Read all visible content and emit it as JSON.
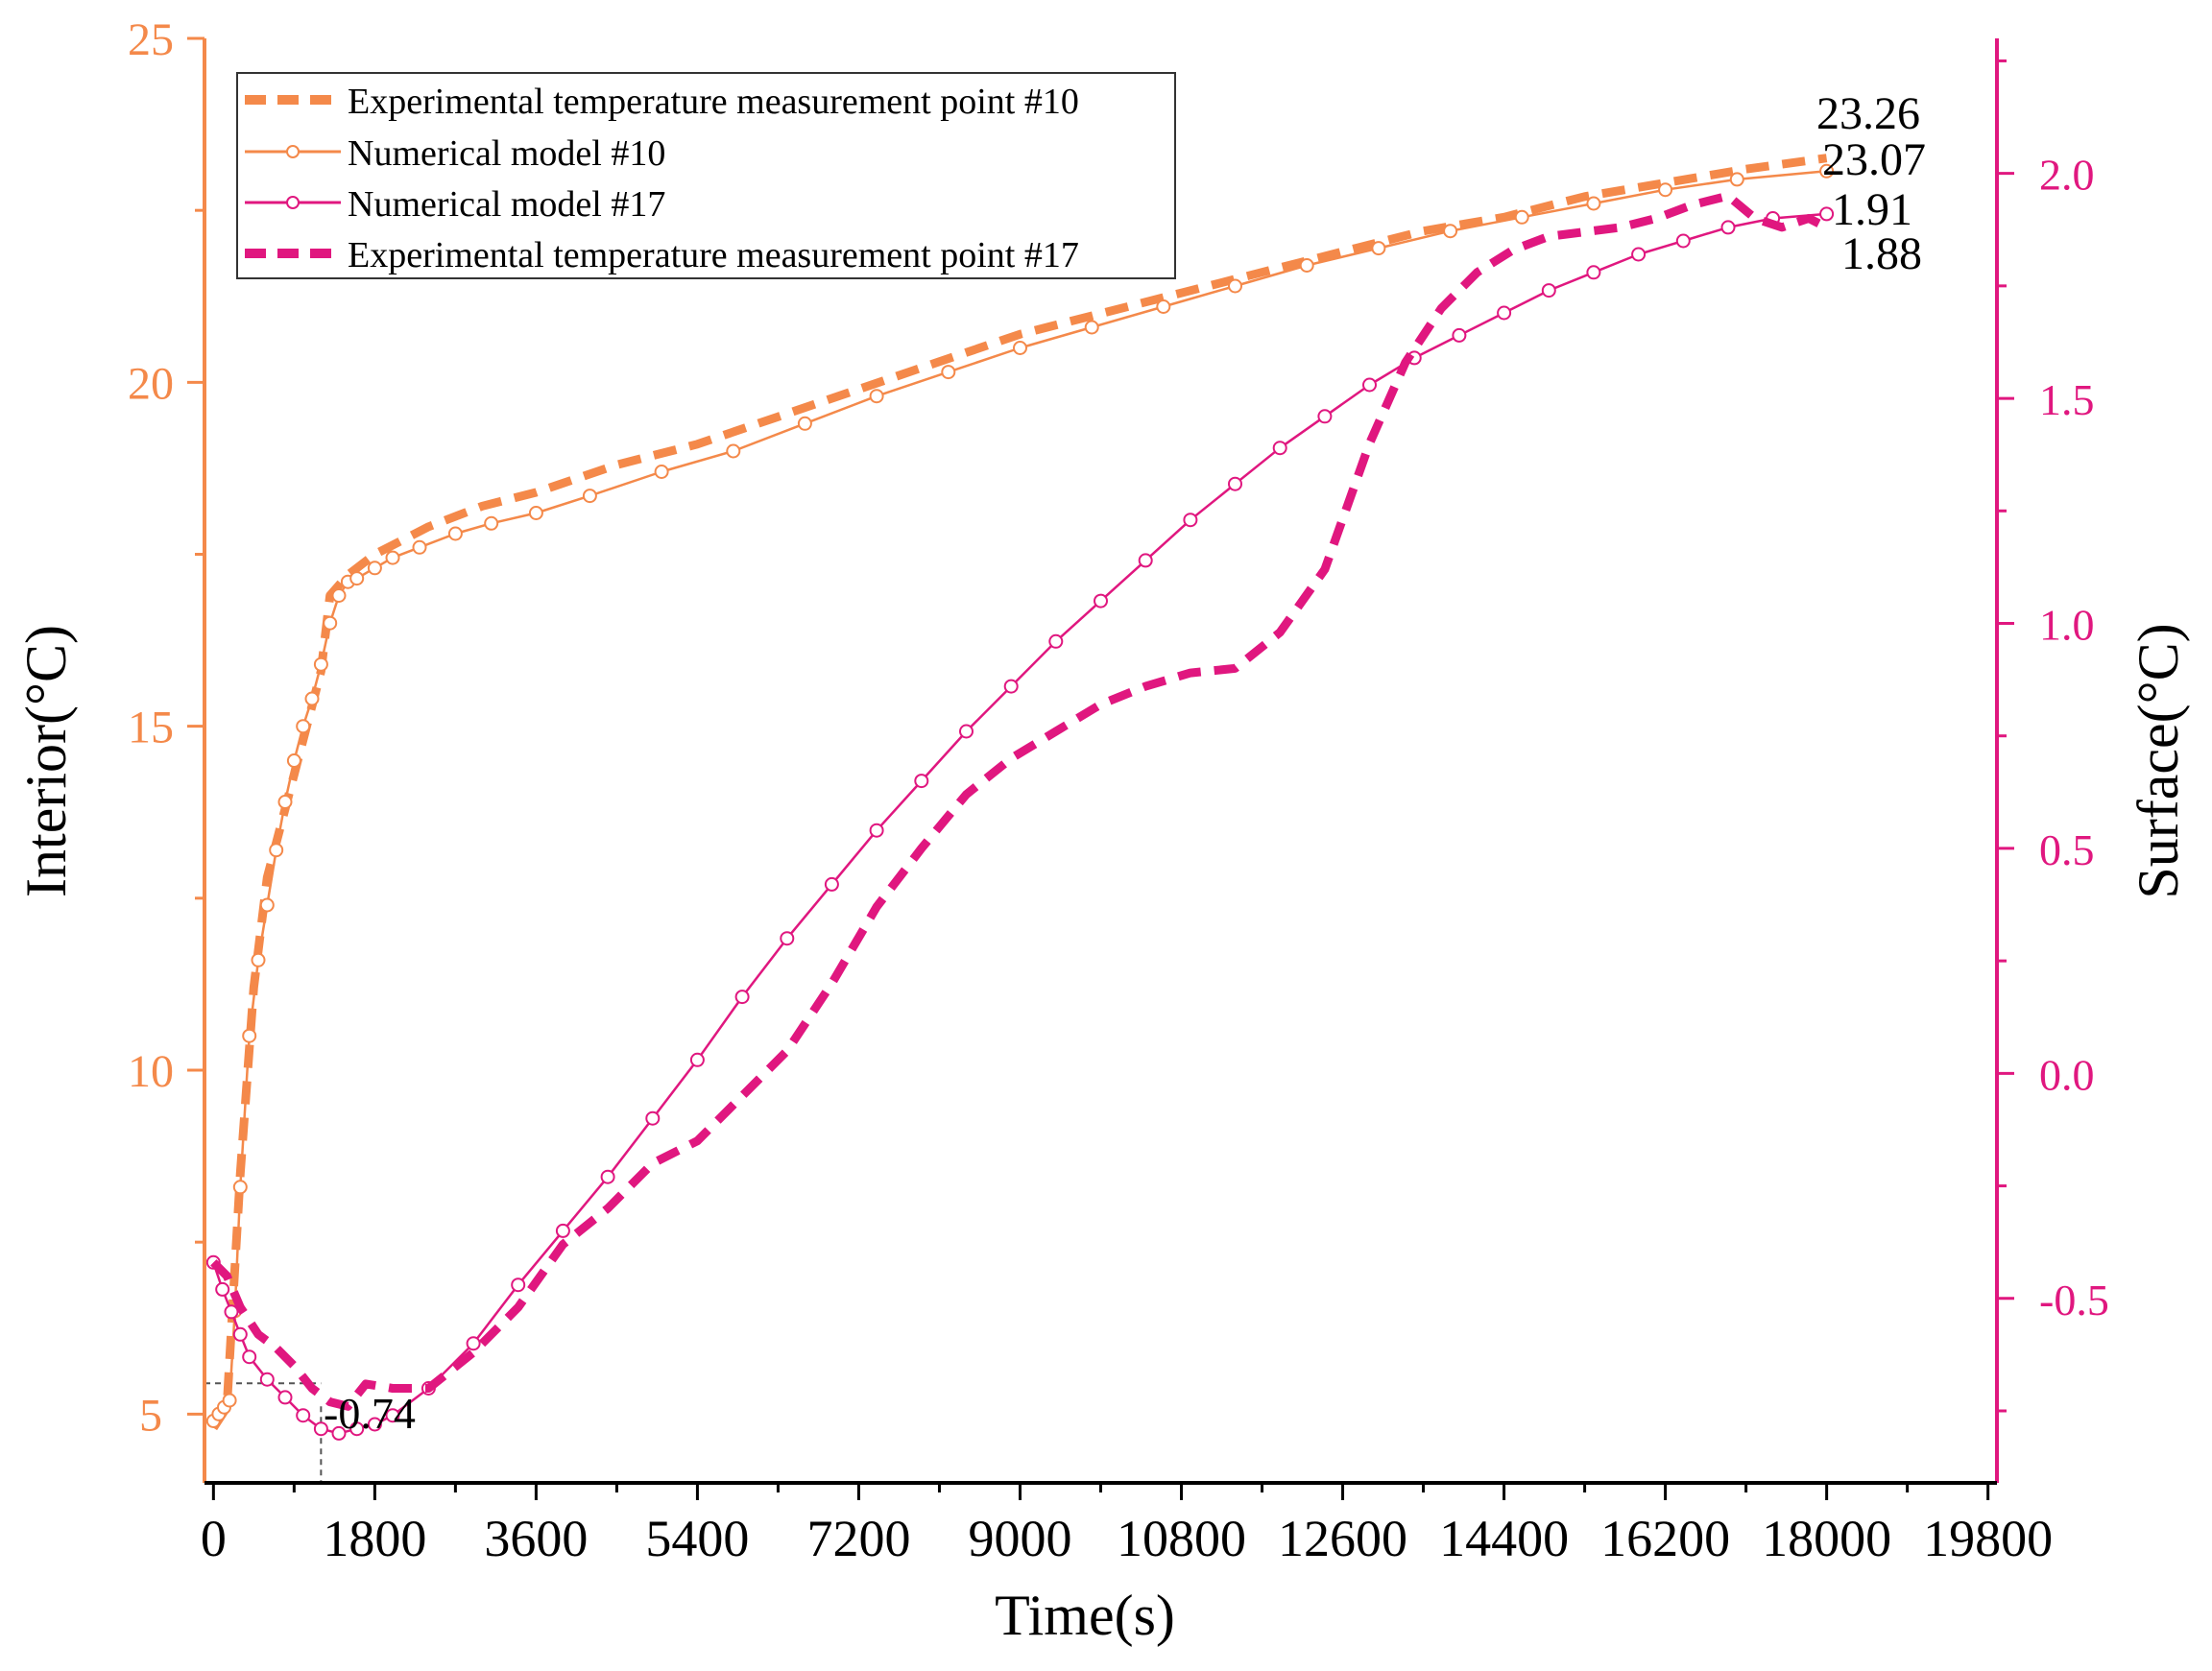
{
  "chart_data": {
    "type": "line",
    "xlabel": "Time(s)",
    "ylabel_left": "Interior(°C)",
    "ylabel_right": "Surface(°C)",
    "xlim": [
      -100,
      19900
    ],
    "ylim_left": [
      4,
      25
    ],
    "ylim_right": [
      -0.91,
      2.3
    ],
    "x_ticks": [
      0,
      1800,
      3600,
      5400,
      7200,
      9000,
      10800,
      12600,
      14400,
      16200,
      18000,
      19800
    ],
    "y_left_ticks": [
      5,
      10,
      15,
      20,
      25
    ],
    "y_right_ticks": [
      -0.5,
      0.0,
      0.5,
      1.0,
      1.5,
      2.0
    ],
    "y_right_tick_labels": [
      "-0.5",
      "0.0",
      "0.5",
      "1.0",
      "1.5",
      "2.0"
    ],
    "colors": {
      "interior": "#F4894A",
      "surface": "#E0177F"
    },
    "series": [
      {
        "name": "Experimental temperature measurement point #10",
        "axis": "left",
        "style": "dashed",
        "color": "#F4894A",
        "x": [
          0,
          150,
          300,
          450,
          600,
          900,
          1200,
          1300,
          1500,
          1800,
          2400,
          3000,
          3600,
          4500,
          5400,
          6300,
          7200,
          8100,
          9000,
          9900,
          10800,
          11700,
          12600,
          13500,
          14400,
          15300,
          16200,
          17100,
          18000
        ],
        "values": [
          4.8,
          5.1,
          8.5,
          11.2,
          12.8,
          14.3,
          15.8,
          16.9,
          17.2,
          17.5,
          17.9,
          18.2,
          18.4,
          18.8,
          19.1,
          19.5,
          19.9,
          20.3,
          20.7,
          21.0,
          21.3,
          21.6,
          21.9,
          22.2,
          22.4,
          22.7,
          22.9,
          23.1,
          23.26
        ]
      },
      {
        "name": "Numerical model #10",
        "axis": "left",
        "style": "solid-circle",
        "color": "#F4894A",
        "x": [
          0,
          60,
          120,
          180,
          240,
          300,
          400,
          500,
          600,
          700,
          800,
          900,
          1000,
          1100,
          1200,
          1300,
          1400,
          1500,
          1600,
          1800,
          2000,
          2300,
          2700,
          3100,
          3600,
          4200,
          5000,
          5800,
          6600,
          7400,
          8200,
          9000,
          9800,
          10600,
          11400,
          12200,
          13000,
          13800,
          14600,
          15400,
          16200,
          17000,
          18000
        ],
        "values": [
          4.9,
          5.0,
          5.1,
          5.2,
          6.5,
          8.3,
          10.5,
          11.6,
          12.4,
          13.2,
          13.9,
          14.5,
          15.0,
          15.4,
          15.9,
          16.5,
          16.9,
          17.1,
          17.15,
          17.3,
          17.45,
          17.6,
          17.8,
          17.95,
          18.1,
          18.35,
          18.7,
          19.0,
          19.4,
          19.8,
          20.15,
          20.5,
          20.8,
          21.1,
          21.4,
          21.7,
          21.95,
          22.2,
          22.4,
          22.6,
          22.8,
          22.95,
          23.07
        ]
      },
      {
        "name": "Numerical model #17",
        "axis": "right",
        "style": "solid-circle",
        "color": "#E0177F",
        "x": [
          0,
          100,
          200,
          300,
          400,
          600,
          800,
          1000,
          1200,
          1400,
          1600,
          1800,
          2000,
          2400,
          2900,
          3400,
          3900,
          4400,
          4900,
          5400,
          5900,
          6400,
          6900,
          7400,
          7900,
          8400,
          8900,
          9400,
          9900,
          10400,
          10900,
          11400,
          11900,
          12400,
          12900,
          13400,
          13900,
          14400,
          14900,
          15400,
          15900,
          16400,
          16900,
          17400,
          18000
        ],
        "values": [
          -0.42,
          -0.48,
          -0.53,
          -0.58,
          -0.63,
          -0.68,
          -0.72,
          -0.76,
          -0.79,
          -0.8,
          -0.79,
          -0.78,
          -0.76,
          -0.7,
          -0.6,
          -0.47,
          -0.35,
          -0.23,
          -0.1,
          0.03,
          0.17,
          0.3,
          0.42,
          0.54,
          0.65,
          0.76,
          0.86,
          0.96,
          1.05,
          1.14,
          1.23,
          1.31,
          1.39,
          1.46,
          1.53,
          1.59,
          1.64,
          1.69,
          1.74,
          1.78,
          1.82,
          1.85,
          1.88,
          1.9,
          1.91
        ]
      },
      {
        "name": "Experimental temperature measurement point #17",
        "axis": "right",
        "style": "dashed",
        "color": "#E0177F",
        "x": [
          0,
          150,
          300,
          500,
          700,
          900,
          1100,
          1300,
          1500,
          1700,
          2000,
          2400,
          2900,
          3400,
          3900,
          4400,
          4900,
          5400,
          5900,
          6400,
          6900,
          7400,
          7900,
          8400,
          8900,
          9400,
          9900,
          10400,
          10900,
          11400,
          11900,
          12400,
          12900,
          13300,
          13700,
          14100,
          14500,
          14900,
          15300,
          15700,
          16100,
          16500,
          16900,
          17200,
          17500,
          17800,
          18000
        ],
        "values": [
          -0.42,
          -0.45,
          -0.52,
          -0.58,
          -0.61,
          -0.65,
          -0.7,
          -0.73,
          -0.74,
          -0.69,
          -0.7,
          -0.7,
          -0.62,
          -0.52,
          -0.38,
          -0.3,
          -0.2,
          -0.15,
          -0.05,
          0.05,
          0.2,
          0.37,
          0.5,
          0.62,
          0.7,
          0.76,
          0.82,
          0.86,
          0.89,
          0.9,
          0.98,
          1.12,
          1.4,
          1.58,
          1.7,
          1.78,
          1.83,
          1.86,
          1.87,
          1.88,
          1.9,
          1.93,
          1.95,
          1.9,
          1.88,
          1.9,
          1.88
        ]
      }
    ],
    "annotations": [
      {
        "text": "23.26",
        "x": 18000,
        "y": 23.26,
        "axis": "left"
      },
      {
        "text": "23.07",
        "x": 18000,
        "y": 23.07,
        "axis": "left"
      },
      {
        "text": "1.91",
        "x": 18000,
        "y": 1.91,
        "axis": "right"
      },
      {
        "text": "1.88",
        "x": 18000,
        "y": 1.88,
        "axis": "right"
      },
      {
        "text": "-0.74",
        "x": 1200,
        "y": -0.74,
        "axis": "right"
      }
    ],
    "legend_position": "top-left"
  }
}
